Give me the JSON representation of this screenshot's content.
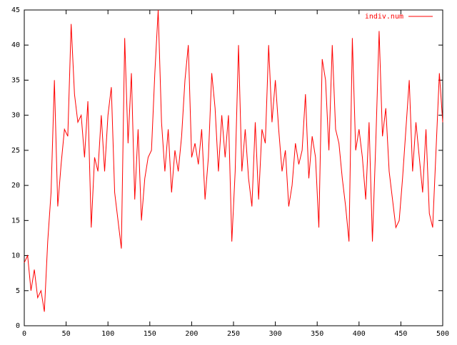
{
  "chart_data": {
    "type": "line",
    "x": [
      0,
      4,
      8,
      12,
      16,
      20,
      24,
      28,
      32,
      36,
      40,
      44,
      48,
      52,
      56,
      60,
      64,
      68,
      72,
      76,
      80,
      84,
      88,
      92,
      96,
      100,
      104,
      108,
      112,
      116,
      120,
      124,
      128,
      132,
      136,
      140,
      144,
      148,
      152,
      156,
      160,
      164,
      168,
      172,
      176,
      180,
      184,
      188,
      192,
      196,
      200,
      204,
      208,
      212,
      216,
      220,
      224,
      228,
      232,
      236,
      240,
      244,
      248,
      252,
      256,
      260,
      264,
      268,
      272,
      276,
      280,
      284,
      288,
      292,
      296,
      300,
      304,
      308,
      312,
      316,
      320,
      324,
      328,
      332,
      336,
      340,
      344,
      348,
      352,
      356,
      360,
      364,
      368,
      372,
      376,
      380,
      384,
      388,
      392,
      396,
      400,
      404,
      408,
      412,
      416,
      420,
      424,
      428,
      432,
      436,
      440,
      444,
      448,
      452,
      456,
      460,
      464,
      468,
      472,
      476,
      480,
      484,
      488,
      492,
      496,
      500
    ],
    "series": [
      {
        "name": "indiv.num",
        "color": "#ff0000",
        "values": [
          9,
          10,
          5,
          8,
          4,
          5,
          2,
          12,
          19,
          35,
          17,
          23,
          28,
          27,
          43,
          33,
          29,
          30,
          24,
          32,
          14,
          24,
          22,
          30,
          22,
          30,
          34,
          19,
          15,
          11,
          41,
          26,
          36,
          18,
          28,
          15,
          21,
          24,
          25,
          36,
          45,
          29,
          22,
          28,
          19,
          25,
          22,
          27,
          35,
          40,
          24,
          26,
          23,
          28,
          18,
          24,
          36,
          31,
          22,
          30,
          24,
          30,
          12,
          22,
          40,
          22,
          28,
          21,
          17,
          29,
          18,
          28,
          26,
          40,
          29,
          35,
          28,
          22,
          25,
          17,
          20,
          26,
          23,
          25,
          33,
          21,
          27,
          24,
          14,
          38,
          35,
          25,
          40,
          28,
          26,
          21,
          17,
          12,
          41,
          25,
          28,
          24,
          18,
          29,
          12,
          26,
          42,
          27,
          31,
          22,
          18,
          14,
          15,
          21,
          28,
          35,
          22,
          29,
          24,
          19,
          28,
          16,
          14,
          25,
          36,
          29
        ]
      }
    ],
    "xlim": [
      0,
      500
    ],
    "xticks": [
      0,
      50,
      100,
      150,
      200,
      250,
      300,
      350,
      400,
      450,
      500
    ],
    "ylim": [
      0,
      45
    ],
    "yticks": [
      0,
      5,
      10,
      15,
      20,
      25,
      30,
      35,
      40,
      45
    ],
    "legend": "top-right"
  }
}
